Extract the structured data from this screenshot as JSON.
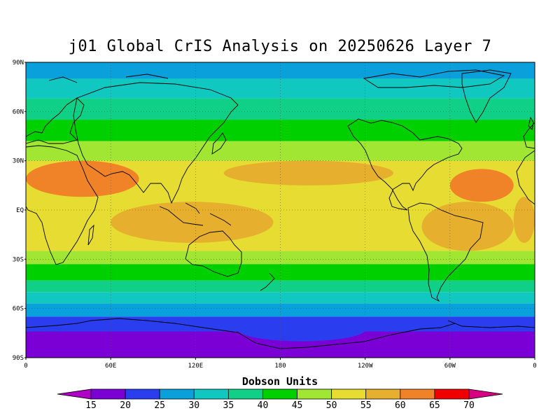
{
  "title": "j01 Global CrIS Analysis on 20250626 Layer 7",
  "units_label": "Dobson Units",
  "lat_labels": [
    "90N",
    "60N",
    "30N",
    "EQ",
    "30S",
    "60S",
    "90S"
  ],
  "lon_labels": [
    "0",
    "60E",
    "120E",
    "180",
    "120W",
    "60W",
    "0"
  ],
  "colorbar": {
    "ticks": [
      "15",
      "20",
      "25",
      "30",
      "35",
      "40",
      "45",
      "50",
      "55",
      "60",
      "65",
      "70"
    ],
    "colors": [
      "#b000c8",
      "#7a00d6",
      "#2a3ef0",
      "#0aa0dc",
      "#10c8c0",
      "#10d088",
      "#00d000",
      "#a0e632",
      "#e6dc32",
      "#e6af2d",
      "#f08228",
      "#f00000",
      "#d70082"
    ]
  },
  "map_data": {
    "type": "heatmap",
    "variable": "Dobson Units",
    "lat_range": [
      -90,
      90
    ],
    "lon_range": [
      0,
      360
    ],
    "grid": true,
    "zonal_bands": [
      {
        "lat": [
          80,
          90
        ],
        "value": 28
      },
      {
        "lat": [
          68,
          80
        ],
        "value": 33
      },
      {
        "lat": [
          55,
          68
        ],
        "value": 38
      },
      {
        "lat": [
          42,
          55
        ],
        "value": 43
      },
      {
        "lat": [
          30,
          42
        ],
        "value": 48
      },
      {
        "lat": [
          -25,
          30
        ],
        "value": 53
      },
      {
        "lat": [
          -33,
          -25
        ],
        "value": 48
      },
      {
        "lat": [
          -43,
          -33
        ],
        "value": 43
      },
      {
        "lat": [
          -50,
          -43
        ],
        "value": 38
      },
      {
        "lat": [
          -57,
          -50
        ],
        "value": 33
      },
      {
        "lat": [
          -65,
          -57
        ],
        "value": 28
      },
      {
        "lat": [
          -74,
          -65
        ],
        "value": 23
      },
      {
        "lat": [
          -90,
          -74
        ],
        "value": 18
      }
    ],
    "regional_features": [
      {
        "lat": [
          8,
          30
        ],
        "lon": [
          0,
          80
        ],
        "value": 63
      },
      {
        "lat": [
          -20,
          8
        ],
        "lon": [
          345,
          360
        ],
        "value": 58
      },
      {
        "lat": [
          5,
          25
        ],
        "lon": [
          300,
          345
        ],
        "value": 62
      },
      {
        "lat": [
          -25,
          5
        ],
        "lon": [
          280,
          345
        ],
        "value": 58
      },
      {
        "lat": [
          -20,
          5
        ],
        "lon": [
          60,
          175
        ],
        "value": 58
      },
      {
        "lat": [
          15,
          30
        ],
        "lon": [
          140,
          260
        ],
        "value": 58
      },
      {
        "lat": [
          -80,
          -66
        ],
        "lon": [
          150,
          240
        ],
        "value": 23
      }
    ]
  }
}
